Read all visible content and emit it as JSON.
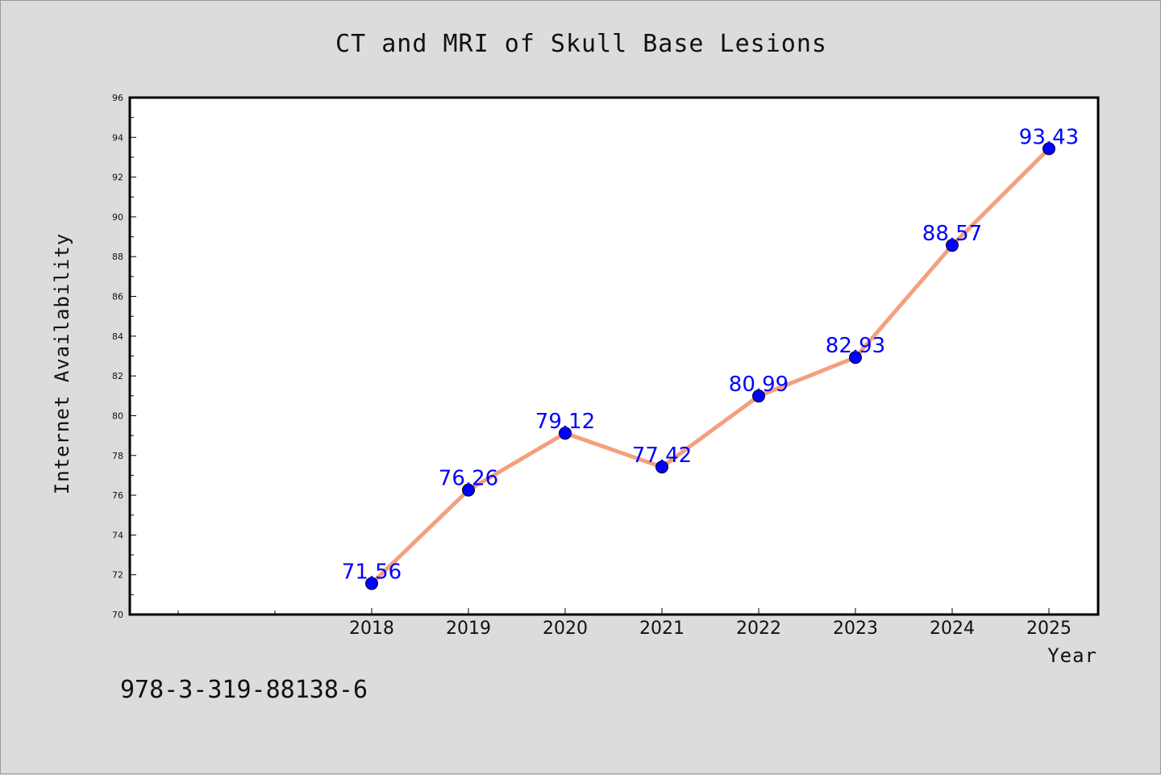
{
  "chart_data": {
    "type": "line",
    "title": "CT and MRI of Skull Base Lesions",
    "xlabel": "Year",
    "ylabel": "Internet Availability",
    "categories": [
      "2018",
      "2019",
      "2020",
      "2021",
      "2022",
      "2023",
      "2024",
      "2025"
    ],
    "series": [
      {
        "values": [
          71.56,
          76.26,
          79.12,
          77.42,
          80.99,
          82.93,
          88.57,
          93.43
        ],
        "labels": [
          "71.56",
          "76.26",
          "79.12",
          "77.42",
          "80.99",
          "82.93",
          "88.57",
          "93.43"
        ],
        "line_color": "#f4a07e",
        "marker_color": "#0000ff"
      }
    ],
    "yticks": [
      "70",
      "72",
      "74",
      "76",
      "78",
      "80",
      "82",
      "84",
      "86",
      "88",
      "90",
      "92",
      "94",
      "96"
    ],
    "ylim": [
      70,
      96
    ],
    "grid": false,
    "legend": "none"
  },
  "footer": {
    "isbn": "978-3-319-88138-6"
  },
  "colors": {
    "background": "#dcdcdc",
    "plot_area": "#ffffff",
    "line": "#f4a07e",
    "marker": "#0000ff",
    "data_label": "#0000ff"
  }
}
